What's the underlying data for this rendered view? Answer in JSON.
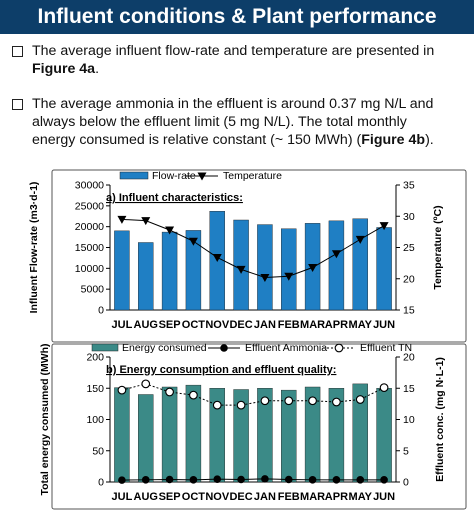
{
  "header": {
    "title": "Influent conditions & Plant performance"
  },
  "bullets": [
    {
      "pre": "The average influent flow-rate and temperature are presented in ",
      "bold": "Figure 4a",
      "post": "."
    },
    {
      "pre": "The average ammonia in the effluent is around 0.37 mg N/L and always below the effluent limit (5 mg N/L). The total monthly energy consumed is relative constant (~ 150 MWh) (",
      "bold": "Figure 4b",
      "post": ")."
    }
  ],
  "chart_data": [
    {
      "type": "bar",
      "title": "a) Influent characteristics:",
      "categories": [
        "JUL",
        "AUG",
        "SEP",
        "OCT",
        "NOV",
        "DEC",
        "JAN",
        "FEB",
        "MAR",
        "APR",
        "MAY",
        "JUN"
      ],
      "series": [
        {
          "name": "Flow-rate",
          "kind": "bar",
          "axis": "left",
          "color": "#1f7fc4",
          "values": [
            19000,
            16200,
            18700,
            19100,
            23700,
            21600,
            20500,
            19500,
            20800,
            21400,
            21900,
            19800
          ]
        },
        {
          "name": "Temperature",
          "kind": "line",
          "marker": "triangle-down",
          "axis": "right",
          "color": "#000000",
          "values": [
            29.5,
            29.3,
            27.8,
            26,
            23.4,
            21.5,
            20.2,
            20.4,
            21.8,
            24,
            26.3,
            28.5
          ]
        }
      ],
      "ylabel_left": "Influent Flow-rate (m3·d-1)",
      "ylabel_right": "Temperature (ºC)",
      "ylim_left": [
        0,
        30000
      ],
      "yticks_left": [
        "0",
        "5000",
        "10000",
        "15000",
        "20000",
        "25000",
        "30000"
      ],
      "ylim_right": [
        15,
        35
      ],
      "yticks_right": [
        "15",
        "20",
        "25",
        "30",
        "35"
      ],
      "legend_position": "top"
    },
    {
      "type": "bar",
      "title": "b) Energy consumption and effluent quality:",
      "categories": [
        "JUL",
        "AUG",
        "SEP",
        "OCT",
        "NOV",
        "DEC",
        "JAN",
        "FEB",
        "MAR",
        "APR",
        "MAY",
        "JUN"
      ],
      "series": [
        {
          "name": "Energy consumed",
          "kind": "bar",
          "axis": "left",
          "color": "#3b8a87",
          "values": [
            151,
            140,
            152,
            155,
            150,
            148,
            150,
            147,
            152,
            150,
            157,
            150
          ]
        },
        {
          "name": "Effluent Ammonia",
          "kind": "line",
          "marker": "filled-circle",
          "axis": "right",
          "color": "#000000",
          "values": [
            0.3,
            0.35,
            0.4,
            0.35,
            0.45,
            0.4,
            0.5,
            0.4,
            0.35,
            0.35,
            0.35,
            0.35
          ]
        },
        {
          "name": "Effluent TN",
          "kind": "line",
          "marker": "open-circle",
          "dashed": true,
          "axis": "right",
          "color": "#000000",
          "values": [
            14.7,
            15.7,
            14.4,
            13.9,
            12.3,
            12.3,
            13,
            13,
            13,
            12.8,
            13.2,
            15.1
          ]
        }
      ],
      "ylabel_left": "Total energy consumed (MWh)",
      "ylabel_right": "Effluent conc. (mg N·L-1)",
      "ylim_left": [
        0,
        200
      ],
      "yticks_left": [
        "0",
        "50",
        "100",
        "150",
        "200"
      ],
      "ylim_right": [
        0,
        20
      ],
      "yticks_right": [
        "0",
        "5",
        "10",
        "15",
        "20"
      ],
      "legend_position": "top"
    }
  ]
}
